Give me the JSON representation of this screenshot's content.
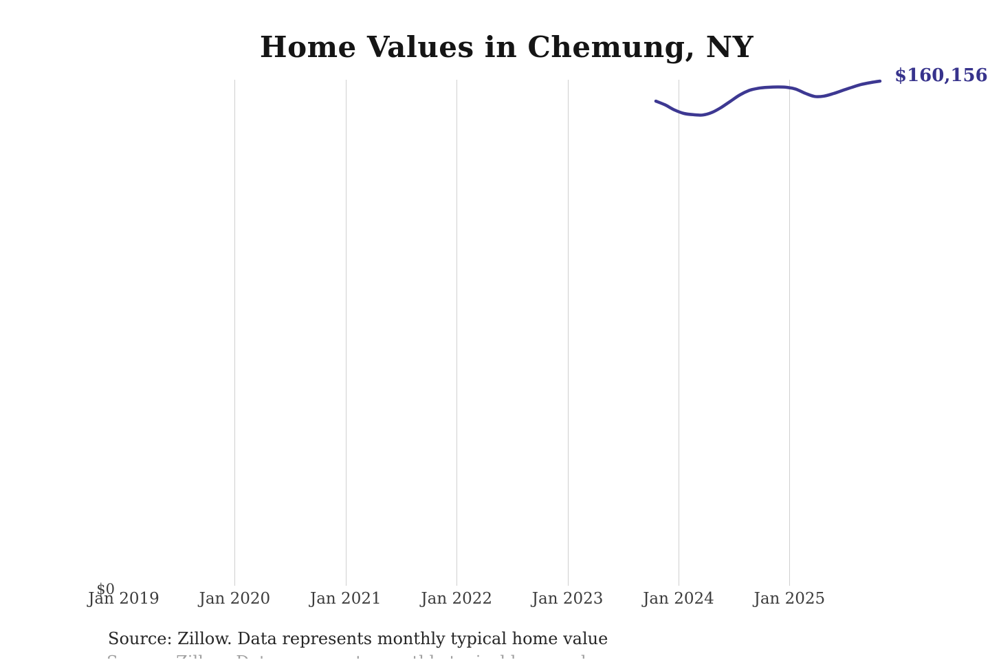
{
  "page": {
    "title": "Home Values in Chemung, NY",
    "caption": "Source: Zillow. Data represents monthly typical home value"
  },
  "axis": {
    "y_zero_label": "$0",
    "x_tick_labels": [
      "Jan 2019",
      "Jan 2020",
      "Jan 2021",
      "Jan 2022",
      "Jan 2023",
      "Jan 2024",
      "Jan 2025"
    ],
    "gridlines_at": [
      "Jan 2020",
      "Jan 2021",
      "Jan 2022",
      "Jan 2023",
      "Jan 2024",
      "Jan 2025"
    ]
  },
  "line": {
    "end_label": "$160,156",
    "end_value": 160156
  },
  "colors": {
    "line": "#3d3892",
    "end_label_text": "#37338c",
    "grid": "#cfcfcf",
    "title_text": "#151515",
    "axis_text": "#3c3c3c",
    "caption_text": "#262626",
    "background": "#ffffff"
  },
  "chart_data": {
    "type": "line",
    "title": "Home Values in Chemung, NY",
    "xlabel": "",
    "ylabel": "",
    "ylim": [
      0,
      160600
    ],
    "grid": "vertical-gridlines-only",
    "legend": "none",
    "x": [
      "Oct 2023",
      "Nov 2023",
      "Dec 2023",
      "Jan 2024",
      "Feb 2024",
      "Mar 2024",
      "Apr 2024",
      "May 2024",
      "Jun 2024",
      "Jul 2024",
      "Aug 2024",
      "Sep 2024",
      "Oct 2024",
      "Nov 2024",
      "Dec 2024",
      "Jan 2025",
      "Feb 2025",
      "Mar 2025",
      "Apr 2025",
      "May 2025",
      "Jun 2025",
      "Jul 2025",
      "Aug 2025",
      "Sep 2025",
      "Oct 2025"
    ],
    "series": [
      {
        "name": "Monthly typical home value",
        "color": "#3d3892",
        "values": [
          153800,
          152600,
          151000,
          149900,
          149500,
          149400,
          150200,
          151800,
          153800,
          155800,
          157200,
          157900,
          158200,
          158300,
          158200,
          157600,
          156300,
          155300,
          155400,
          156200,
          157200,
          158200,
          159100,
          159700,
          160156
        ]
      }
    ],
    "end_annotation": "$160,156",
    "source": "Source: Zillow. Data represents monthly typical home value"
  }
}
